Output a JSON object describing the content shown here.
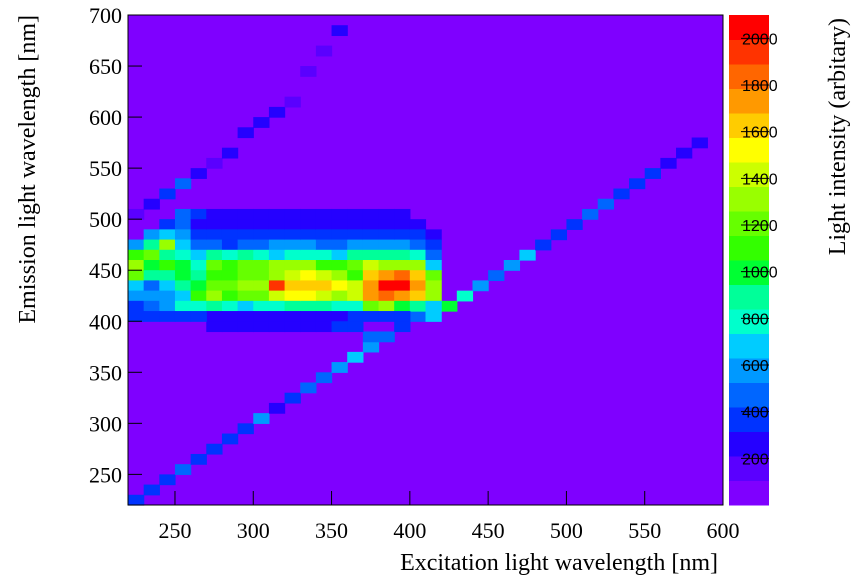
{
  "chart_data": {
    "type": "heatmap",
    "title": "",
    "xlabel": "Excitation light wavelength [nm]",
    "ylabel": "Emission light wavelength [nm]",
    "colorbar_label": "Light intensity (arbitary)",
    "xlim": [
      220,
      600
    ],
    "ylim": [
      220,
      700
    ],
    "zlim": [
      0,
      2100
    ],
    "bin_width_x": 10,
    "bin_width_y": 10,
    "background_value": 30,
    "x_ticks": [
      250,
      300,
      350,
      400,
      450,
      500,
      550,
      600
    ],
    "y_ticks": [
      250,
      300,
      350,
      400,
      450,
      500,
      550,
      600,
      650,
      700
    ],
    "colorbar_ticks": [
      200,
      400,
      600,
      800,
      1000,
      1200,
      1400,
      1600,
      1800,
      2000
    ],
    "colorbar_labels": [
      "200",
      "400",
      "600",
      "800",
      "1000",
      "1200",
      "1400",
      "1600",
      "1800",
      "2000"
    ],
    "grid": false,
    "palette": [
      "#7f00ff",
      "#5a00ff",
      "#2500ff",
      "#0033ff",
      "#0066ff",
      "#0099ff",
      "#00ccff",
      "#00ffcc",
      "#00ff99",
      "#00ff33",
      "#33ff00",
      "#66ff00",
      "#99ff00",
      "#ccff00",
      "#ffff00",
      "#ffcc00",
      "#ff9900",
      "#ff6600",
      "#ff3300",
      "#ff0000"
    ],
    "cells": [
      [
        220,
        220,
        350
      ],
      [
        230,
        230,
        350
      ],
      [
        240,
        240,
        350
      ],
      [
        250,
        250,
        500
      ],
      [
        260,
        260,
        350
      ],
      [
        270,
        270,
        350
      ],
      [
        280,
        280,
        400
      ],
      [
        290,
        290,
        400
      ],
      [
        300,
        300,
        600
      ],
      [
        310,
        310,
        300
      ],
      [
        320,
        320,
        350
      ],
      [
        330,
        330,
        450
      ],
      [
        340,
        340,
        500
      ],
      [
        350,
        350,
        600
      ],
      [
        360,
        360,
        650
      ],
      [
        370,
        370,
        600
      ],
      [
        370,
        380,
        500
      ],
      [
        380,
        380,
        450
      ],
      [
        390,
        390,
        400
      ],
      [
        400,
        400,
        450
      ],
      [
        410,
        400,
        700
      ],
      [
        420,
        410,
        1000
      ],
      [
        430,
        420,
        800
      ],
      [
        440,
        430,
        600
      ],
      [
        450,
        440,
        450
      ],
      [
        460,
        450,
        600
      ],
      [
        470,
        460,
        700
      ],
      [
        480,
        470,
        400
      ],
      [
        490,
        480,
        350
      ],
      [
        500,
        490,
        350
      ],
      [
        510,
        500,
        500
      ],
      [
        520,
        510,
        450
      ],
      [
        530,
        520,
        400
      ],
      [
        540,
        530,
        350
      ],
      [
        550,
        540,
        350
      ],
      [
        560,
        550,
        300
      ],
      [
        570,
        560,
        250
      ],
      [
        580,
        570,
        250
      ],
      [
        220,
        500,
        200
      ],
      [
        230,
        510,
        250
      ],
      [
        240,
        520,
        400
      ],
      [
        250,
        530,
        500
      ],
      [
        260,
        540,
        300
      ],
      [
        270,
        550,
        200
      ],
      [
        280,
        560,
        300
      ],
      [
        290,
        580,
        300
      ],
      [
        300,
        590,
        250
      ],
      [
        310,
        600,
        300
      ],
      [
        320,
        610,
        200
      ],
      [
        330,
        640,
        200
      ],
      [
        340,
        660,
        200
      ],
      [
        350,
        680,
        250
      ],
      [
        220,
        470,
        550
      ],
      [
        220,
        460,
        1100
      ],
      [
        220,
        450,
        1350
      ],
      [
        220,
        440,
        1200
      ],
      [
        220,
        430,
        650
      ],
      [
        220,
        420,
        600
      ],
      [
        220,
        410,
        350
      ],
      [
        230,
        480,
        600
      ],
      [
        230,
        470,
        900
      ],
      [
        230,
        460,
        1200
      ],
      [
        230,
        450,
        1000
      ],
      [
        230,
        440,
        900
      ],
      [
        230,
        430,
        500
      ],
      [
        230,
        420,
        550
      ],
      [
        230,
        410,
        500
      ],
      [
        240,
        490,
        400
      ],
      [
        240,
        480,
        700
      ],
      [
        240,
        470,
        1300
      ],
      [
        240,
        460,
        900
      ],
      [
        240,
        450,
        1100
      ],
      [
        240,
        440,
        900
      ],
      [
        240,
        430,
        650
      ],
      [
        240,
        420,
        600
      ],
      [
        240,
        410,
        600
      ],
      [
        250,
        500,
        500
      ],
      [
        250,
        490,
        500
      ],
      [
        250,
        480,
        600
      ],
      [
        250,
        470,
        700
      ],
      [
        250,
        460,
        800
      ],
      [
        250,
        450,
        1000
      ],
      [
        250,
        440,
        1000
      ],
      [
        250,
        430,
        900
      ],
      [
        250,
        420,
        700
      ],
      [
        250,
        410,
        800
      ],
      [
        260,
        500,
        400
      ],
      [
        260,
        490,
        300
      ],
      [
        260,
        480,
        400
      ],
      [
        260,
        470,
        500
      ],
      [
        260,
        460,
        700
      ],
      [
        260,
        450,
        800
      ],
      [
        260,
        440,
        900
      ],
      [
        260,
        430,
        1000
      ],
      [
        260,
        420,
        1100
      ],
      [
        260,
        410,
        800
      ],
      [
        270,
        500,
        300
      ],
      [
        270,
        490,
        300
      ],
      [
        270,
        480,
        350
      ],
      [
        270,
        470,
        500
      ],
      [
        270,
        460,
        900
      ],
      [
        270,
        450,
        1200
      ],
      [
        270,
        440,
        1100
      ],
      [
        270,
        430,
        1250
      ],
      [
        270,
        420,
        1300
      ],
      [
        270,
        410,
        900
      ],
      [
        280,
        500,
        300
      ],
      [
        280,
        490,
        300
      ],
      [
        280,
        480,
        350
      ],
      [
        280,
        470,
        400
      ],
      [
        280,
        460,
        750
      ],
      [
        280,
        450,
        1150
      ],
      [
        280,
        440,
        1100
      ],
      [
        280,
        430,
        1200
      ],
      [
        280,
        420,
        1150
      ],
      [
        280,
        410,
        750
      ],
      [
        290,
        500,
        300
      ],
      [
        290,
        490,
        300
      ],
      [
        290,
        480,
        350
      ],
      [
        290,
        470,
        450
      ],
      [
        290,
        460,
        900
      ],
      [
        290,
        450,
        1200
      ],
      [
        290,
        440,
        1200
      ],
      [
        290,
        430,
        1300
      ],
      [
        290,
        420,
        1200
      ],
      [
        290,
        410,
        700
      ],
      [
        300,
        500,
        300
      ],
      [
        300,
        490,
        300
      ],
      [
        300,
        480,
        400
      ],
      [
        300,
        470,
        500
      ],
      [
        300,
        460,
        800
      ],
      [
        300,
        450,
        1200
      ],
      [
        300,
        440,
        1200
      ],
      [
        300,
        430,
        1300
      ],
      [
        300,
        420,
        1200
      ],
      [
        300,
        410,
        800
      ],
      [
        310,
        500,
        300
      ],
      [
        310,
        490,
        300
      ],
      [
        310,
        480,
        400
      ],
      [
        310,
        470,
        600
      ],
      [
        310,
        460,
        700
      ],
      [
        310,
        450,
        1300
      ],
      [
        310,
        440,
        1300
      ],
      [
        310,
        430,
        1900
      ],
      [
        310,
        420,
        1400
      ],
      [
        310,
        410,
        800
      ],
      [
        320,
        500,
        300
      ],
      [
        320,
        490,
        300
      ],
      [
        320,
        480,
        350
      ],
      [
        320,
        470,
        550
      ],
      [
        320,
        460,
        800
      ],
      [
        320,
        450,
        1300
      ],
      [
        320,
        440,
        1400
      ],
      [
        320,
        430,
        1600
      ],
      [
        320,
        420,
        1500
      ],
      [
        320,
        410,
        900
      ],
      [
        330,
        500,
        300
      ],
      [
        330,
        490,
        300
      ],
      [
        330,
        480,
        400
      ],
      [
        330,
        470,
        600
      ],
      [
        330,
        460,
        800
      ],
      [
        330,
        450,
        1300
      ],
      [
        330,
        440,
        1500
      ],
      [
        330,
        430,
        1600
      ],
      [
        330,
        420,
        1500
      ],
      [
        330,
        410,
        900
      ],
      [
        340,
        500,
        300
      ],
      [
        340,
        490,
        300
      ],
      [
        340,
        480,
        400
      ],
      [
        340,
        470,
        500
      ],
      [
        340,
        460,
        800
      ],
      [
        340,
        450,
        1100
      ],
      [
        340,
        440,
        1400
      ],
      [
        340,
        430,
        1600
      ],
      [
        340,
        420,
        1400
      ],
      [
        340,
        410,
        900
      ],
      [
        350,
        500,
        300
      ],
      [
        350,
        490,
        300
      ],
      [
        350,
        480,
        400
      ],
      [
        350,
        470,
        500
      ],
      [
        350,
        460,
        700
      ],
      [
        350,
        450,
        1100
      ],
      [
        350,
        440,
        1300
      ],
      [
        350,
        430,
        1500
      ],
      [
        350,
        420,
        1300
      ],
      [
        350,
        410,
        800
      ],
      [
        360,
        500,
        300
      ],
      [
        360,
        490,
        300
      ],
      [
        360,
        480,
        350
      ],
      [
        360,
        470,
        550
      ],
      [
        360,
        460,
        900
      ],
      [
        360,
        450,
        1200
      ],
      [
        360,
        440,
        1100
      ],
      [
        360,
        430,
        1400
      ],
      [
        360,
        420,
        1400
      ],
      [
        360,
        410,
        800
      ],
      [
        370,
        500,
        300
      ],
      [
        370,
        490,
        300
      ],
      [
        370,
        480,
        400
      ],
      [
        370,
        470,
        550
      ],
      [
        370,
        460,
        900
      ],
      [
        370,
        450,
        1400
      ],
      [
        370,
        440,
        1600
      ],
      [
        370,
        430,
        1700
      ],
      [
        370,
        420,
        1700
      ],
      [
        370,
        410,
        1200
      ],
      [
        380,
        500,
        300
      ],
      [
        380,
        490,
        300
      ],
      [
        380,
        480,
        400
      ],
      [
        380,
        470,
        550
      ],
      [
        380,
        460,
        900
      ],
      [
        380,
        450,
        1300
      ],
      [
        380,
        440,
        1700
      ],
      [
        380,
        430,
        2000
      ],
      [
        380,
        420,
        1800
      ],
      [
        380,
        410,
        1300
      ],
      [
        390,
        500,
        300
      ],
      [
        390,
        490,
        300
      ],
      [
        390,
        480,
        400
      ],
      [
        390,
        470,
        550
      ],
      [
        390,
        460,
        900
      ],
      [
        390,
        450,
        1300
      ],
      [
        390,
        440,
        1800
      ],
      [
        390,
        430,
        2100
      ],
      [
        390,
        420,
        1700
      ],
      [
        390,
        410,
        1000
      ],
      [
        400,
        490,
        300
      ],
      [
        400,
        480,
        350
      ],
      [
        400,
        470,
        500
      ],
      [
        400,
        460,
        800
      ],
      [
        400,
        450,
        1300
      ],
      [
        400,
        440,
        1600
      ],
      [
        400,
        430,
        1700
      ],
      [
        400,
        420,
        1600
      ],
      [
        400,
        410,
        900
      ],
      [
        410,
        480,
        300
      ],
      [
        410,
        470,
        400
      ],
      [
        410,
        460,
        500
      ],
      [
        410,
        450,
        700
      ],
      [
        410,
        440,
        1200
      ],
      [
        410,
        430,
        1300
      ],
      [
        410,
        420,
        1300
      ],
      [
        410,
        410,
        700
      ],
      [
        360,
        400,
        350
      ],
      [
        370,
        400,
        350
      ],
      [
        380,
        400,
        350
      ],
      [
        390,
        400,
        350
      ],
      [
        270,
        400,
        300
      ],
      [
        280,
        400,
        300
      ],
      [
        290,
        400,
        300
      ],
      [
        300,
        400,
        300
      ],
      [
        310,
        400,
        300
      ],
      [
        320,
        400,
        300
      ],
      [
        330,
        400,
        300
      ],
      [
        340,
        400,
        300
      ],
      [
        350,
        400,
        300
      ],
      [
        270,
        390,
        300
      ],
      [
        280,
        390,
        300
      ],
      [
        290,
        390,
        300
      ],
      [
        300,
        390,
        300
      ],
      [
        310,
        390,
        300
      ],
      [
        320,
        390,
        300
      ],
      [
        330,
        390,
        300
      ],
      [
        340,
        390,
        300
      ],
      [
        350,
        390,
        350
      ],
      [
        360,
        390,
        400
      ],
      [
        220,
        400,
        350
      ],
      [
        230,
        400,
        350
      ],
      [
        240,
        400,
        350
      ],
      [
        250,
        400,
        350
      ],
      [
        260,
        400,
        350
      ]
    ]
  }
}
